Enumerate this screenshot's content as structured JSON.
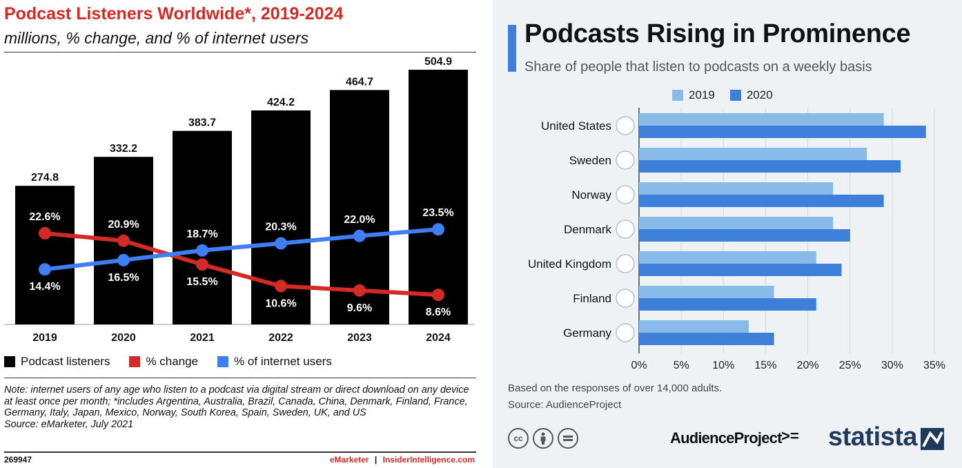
{
  "left": {
    "title": "Podcast Listeners Worldwide*, 2019-2024",
    "subtitle": "millions, % change, and % of internet users",
    "legend": [
      "Podcast listeners",
      "% change",
      "% of internet users"
    ],
    "note": "Note: internet users of any age who listen to a podcast via digital stream or direct download on any device at least once per month; *includes Argentina, Australia, Brazil, Canada, China, Denmark, Finland, France, Germany, Italy, Japan, Mexico, Norway, South Korea, Spain, Sweden, UK, and US",
    "source": "Source: eMarketer, July 2021",
    "id": "269947",
    "brand_a": "eMarketer",
    "brand_sep": "|",
    "brand_b": "InsiderIntelligence.com"
  },
  "right": {
    "title": "Podcasts Rising in Prominence",
    "subtitle": "Share of people that listen to podcasts on a weekly basis",
    "note": "Based on the responses of over 14,000 adults.",
    "source": "Source: AudienceProject",
    "logo_ap": "AudienceProject",
    "logo_ap_mark": ">=",
    "logo_statista": "statista",
    "cc_icons": [
      "cc-icon",
      "person-icon",
      "equals-icon"
    ]
  },
  "colors": {
    "bars": "#000000",
    "pct_change": "#d42a26",
    "pct_internet": "#3f7ef5",
    "y2019": "#89bbe8",
    "y2020": "#3d7fd9"
  },
  "chart_data": [
    {
      "type": "bar",
      "categories": [
        "2019",
        "2020",
        "2021",
        "2022",
        "2023",
        "2024"
      ],
      "values": [
        274.8,
        332.2,
        383.7,
        424.2,
        464.7,
        504.9
      ],
      "value_labels": [
        "274.8",
        "332.2",
        "383.7",
        "424.2",
        "464.7",
        "504.9"
      ],
      "series": [
        {
          "name": "Podcast listeners",
          "type": "bar",
          "values": [
            274.8,
            332.2,
            383.7,
            424.2,
            464.7,
            504.9
          ]
        },
        {
          "name": "% change",
          "type": "line",
          "values": [
            22.6,
            20.9,
            15.5,
            10.6,
            9.6,
            8.6
          ],
          "labels": [
            "22.6%",
            "20.9%",
            "15.5%",
            "10.6%",
            "9.6%",
            "8.6%"
          ]
        },
        {
          "name": "% of internet users",
          "type": "line",
          "values": [
            14.4,
            16.5,
            18.7,
            20.3,
            22.0,
            23.5
          ],
          "labels": [
            "14.4%",
            "16.5%",
            "18.7%",
            "20.3%",
            "22.0%",
            "23.5%"
          ]
        }
      ],
      "title": "Podcast Listeners Worldwide*, 2019-2024",
      "subtitle": "millions, % change, and % of internet users",
      "ylim": [
        0,
        520
      ],
      "line_ylim": [
        0,
        40
      ],
      "grid": false,
      "legend": "bottom"
    },
    {
      "type": "bar",
      "orientation": "horizontal",
      "categories": [
        "United States",
        "Sweden",
        "Norway",
        "Denmark",
        "United Kingdom",
        "Finland",
        "Germany"
      ],
      "series": [
        {
          "name": "2019",
          "values": [
            29,
            27,
            23,
            23,
            21,
            16,
            13
          ]
        },
        {
          "name": "2020",
          "values": [
            34,
            31,
            29,
            25,
            24,
            21,
            16
          ]
        }
      ],
      "title": "Podcasts Rising in Prominence",
      "subtitle": "Share of people that listen to podcasts on a weekly basis",
      "xlim": [
        0,
        35
      ],
      "xticks": [
        "0%",
        "5%",
        "10%",
        "15%",
        "20%",
        "25%",
        "30%",
        "35%"
      ],
      "grid": true,
      "legend": "top"
    }
  ]
}
